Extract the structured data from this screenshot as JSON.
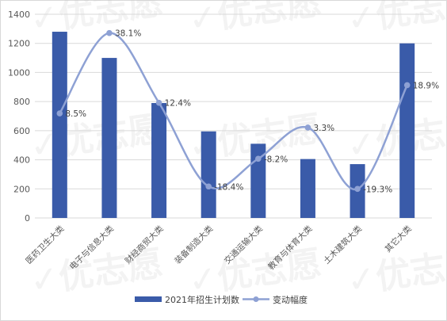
{
  "chart_data": {
    "type": "bar",
    "categories": [
      "医药卫生大类",
      "电子与信息大类",
      "财经商贸大类",
      "装备制造大类",
      "交通运输大类",
      "教育与体育大类",
      "土木建筑大类",
      "其它大类"
    ],
    "series": [
      {
        "name": "2021年招生计划数",
        "kind": "bar",
        "axis": "left",
        "values": [
          1280,
          1100,
          790,
          595,
          510,
          405,
          370,
          1200
        ]
      },
      {
        "name": "变动幅度",
        "kind": "line",
        "smooth": true,
        "markers": "circle",
        "axis": "secondary-hidden",
        "values": [
          8.5,
          38.1,
          12.4,
          -18.4,
          -8.2,
          3.3,
          -19.3,
          18.9
        ],
        "labels": [
          "8.5%",
          "38.1%",
          "12.4%",
          "-18.4%",
          "-8.2%",
          "3.3%",
          "-19.3%",
          "18.9%"
        ]
      }
    ],
    "y_ticks": [
      "0",
      "200",
      "400",
      "600",
      "800",
      "1000",
      "1200",
      "1400"
    ],
    "ylim": [
      0,
      1400
    ],
    "grid": "horizontal",
    "legend_position": "bottom",
    "colors": {
      "bar": "#3a5ba9",
      "line": "#8ea1d4",
      "grid": "#d9d9d9",
      "axis_text": "#595959"
    },
    "watermark": "优志愿"
  }
}
